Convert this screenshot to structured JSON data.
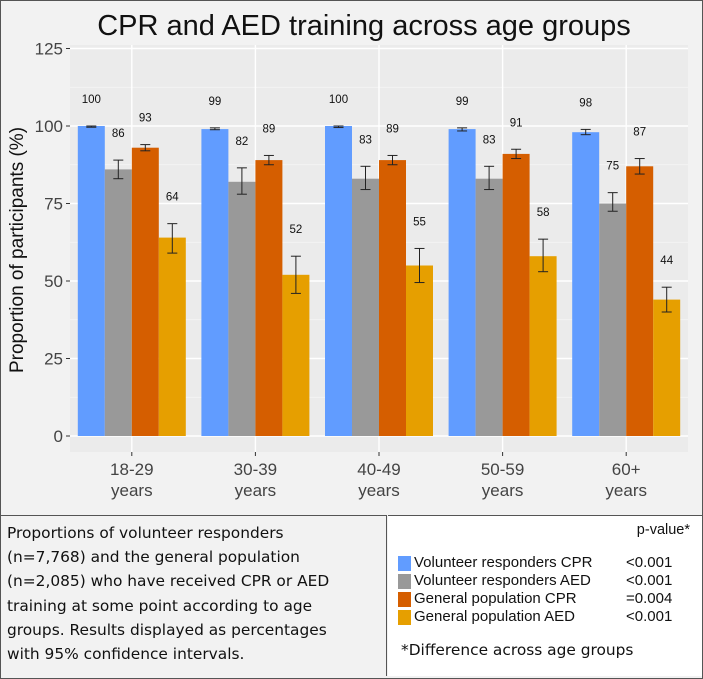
{
  "chart_data": {
    "type": "bar",
    "title": "CPR and AED training across age groups",
    "xlabel": "",
    "ylabel": "Proportion of participants (%)",
    "ylim": [
      0,
      125
    ],
    "yticks": [
      0,
      25,
      50,
      75,
      100,
      125
    ],
    "grid": true,
    "categories": [
      "18-29",
      "30-39",
      "40-49",
      "50-59",
      "60+"
    ],
    "category_sublabel": "years",
    "series": [
      {
        "name": "Volunteer responders CPR",
        "color": "#619CFF",
        "values": [
          100,
          99,
          100,
          99,
          98
        ],
        "ci_low": [
          99.6,
          98.8,
          99.5,
          98.4,
          97.2
        ],
        "ci_high": [
          100,
          99.4,
          100,
          99.4,
          98.9
        ]
      },
      {
        "name": "Volunteer responders AED",
        "color": "#999999",
        "values": [
          86,
          82,
          83,
          83,
          75
        ],
        "ci_low": [
          83,
          78,
          79.5,
          79.5,
          72.5
        ],
        "ci_high": [
          89,
          86.5,
          87,
          87,
          78.5
        ]
      },
      {
        "name": "General population CPR",
        "color": "#D55E00",
        "values": [
          93,
          89,
          89,
          91,
          87
        ],
        "ci_low": [
          92,
          87.5,
          87.5,
          89.5,
          84.5
        ],
        "ci_high": [
          94,
          90.5,
          90.5,
          92.5,
          89.5
        ]
      },
      {
        "name": "General population AED",
        "color": "#E69F00",
        "values": [
          64,
          52,
          55,
          58,
          44
        ],
        "ci_low": [
          59,
          46,
          49.5,
          53,
          40
        ],
        "ci_high": [
          68.5,
          58,
          60.5,
          63.5,
          48
        ]
      }
    ]
  },
  "description": {
    "lines": [
      "Proportions of volunteer responders",
      "(n=7,768) and the general population",
      "(n=2,085) who have received CPR or AED",
      "training at some point according to age",
      "groups. Results displayed as percentages",
      "with 95% confidence intervals."
    ]
  },
  "legend": {
    "pvalue_header": "p-value*",
    "items": [
      {
        "label": "Volunteer responders CPR",
        "pvalue": "<0.001",
        "color": "#619CFF"
      },
      {
        "label": "Volunteer responders AED",
        "pvalue": "<0.001",
        "color": "#999999"
      },
      {
        "label": "General population CPR",
        "pvalue": "=0.004",
        "color": "#D55E00"
      },
      {
        "label": "General population AED",
        "pvalue": "<0.001",
        "color": "#E69F00"
      }
    ],
    "footnote": "*Difference across age groups"
  }
}
